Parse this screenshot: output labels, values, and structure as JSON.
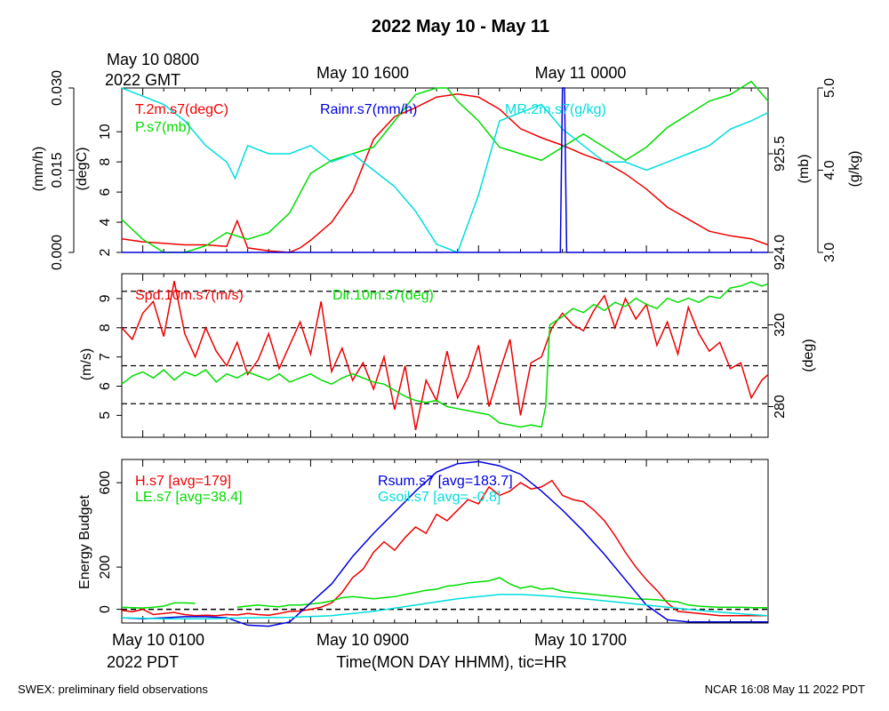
{
  "title": "2022 May 10 - May 11",
  "top_axis": {
    "corner_label_1": "May 10 0800",
    "corner_label_2": "2022 GMT",
    "tick_labels": [
      "May 10 1600",
      "May 11 0000"
    ]
  },
  "bottom_axis": {
    "tick_labels": [
      "May 10 0100",
      "May 10 0900",
      "May 10 1700"
    ],
    "corner_label": "2022 PDT",
    "xlabel": "Time(MON DAY HHMM), tic=HR"
  },
  "footer": {
    "left": "SWEX: preliminary field observations",
    "right": "NCAR 16:08 May 11 2022 PDT"
  },
  "colors": {
    "red": "#ee0000",
    "green": "#00dd00",
    "blue": "#0000dd",
    "cyan": "#00dddd",
    "black": "#000000"
  },
  "chart_data": [
    {
      "type": "line",
      "panel": "top",
      "x_unit": "hours since May 10 0000 PDT",
      "xlim": [
        0,
        30.8
      ],
      "axes": {
        "rain": {
          "ylabel": "(mm/h)",
          "ylim": [
            0,
            0.03
          ],
          "ticks": [
            "0.000",
            "0.015",
            "0.030"
          ]
        },
        "temp": {
          "ylabel": "(degC)",
          "ylim": [
            2,
            12.9
          ],
          "ticks": [
            "2",
            "4",
            "6",
            "8",
            "10"
          ]
        },
        "pressure": {
          "ylabel": "(mb)",
          "ylim": [
            924,
            926.5
          ],
          "ticks": [
            "924.0",
            "925.5"
          ]
        },
        "mr": {
          "ylabel": "(g/kg)",
          "ylim": [
            3,
            5
          ],
          "ticks": [
            "3.0",
            "4.0",
            "5.0"
          ]
        }
      },
      "series": [
        {
          "name": "T.2m.s7(degC)",
          "axis": "temp",
          "color": "red",
          "x": [
            0,
            1,
            2,
            3,
            4,
            5,
            5.5,
            6,
            7,
            8,
            8.5,
            9,
            10,
            11,
            12,
            13,
            14,
            15,
            16,
            17,
            18,
            19,
            20,
            21,
            22,
            23,
            24,
            25,
            26,
            27,
            28,
            29,
            30,
            30.8
          ],
          "y": [
            2.9,
            2.7,
            2.6,
            2.5,
            2.5,
            2.4,
            4.1,
            2.3,
            2.1,
            2.0,
            2.3,
            2.8,
            4.0,
            6.0,
            9.5,
            11.0,
            11.6,
            12.3,
            12.5,
            12.3,
            11.5,
            10.2,
            9.6,
            9.1,
            8.5,
            8.0,
            7.2,
            6.2,
            5.0,
            4.2,
            3.4,
            3.1,
            2.9,
            2.5
          ]
        },
        {
          "name": "P.s7(mb)",
          "axis": "pressure",
          "color": "green",
          "x": [
            0,
            1,
            2,
            3,
            4,
            5,
            6,
            7,
            8,
            9,
            10,
            11,
            12,
            13,
            14,
            15,
            15.5,
            16,
            17,
            18,
            19,
            20,
            21,
            22,
            23,
            24,
            25,
            26,
            27,
            28,
            29,
            30,
            30.8
          ],
          "y": [
            924.5,
            924.2,
            924.0,
            924.0,
            924.1,
            924.3,
            924.2,
            924.3,
            924.6,
            925.2,
            925.4,
            925.5,
            925.6,
            926.0,
            926.4,
            926.5,
            926.5,
            926.3,
            926.0,
            925.6,
            925.5,
            925.4,
            925.6,
            925.8,
            925.6,
            925.4,
            925.6,
            925.9,
            926.1,
            926.3,
            926.4,
            926.6,
            926.3
          ]
        },
        {
          "name": "MR.2m.s7(g/kg)",
          "axis": "mr",
          "color": "cyan",
          "x": [
            0,
            1,
            2,
            3,
            4,
            5,
            5.4,
            6,
            7,
            8,
            9,
            10,
            11,
            12,
            13,
            14,
            15,
            16,
            17,
            18,
            19,
            20,
            21,
            22,
            23,
            24,
            25,
            26,
            27,
            28,
            29,
            30,
            30.8
          ],
          "y": [
            5.0,
            4.9,
            4.8,
            4.6,
            4.3,
            4.1,
            3.9,
            4.3,
            4.2,
            4.2,
            4.3,
            4.1,
            4.2,
            4.0,
            3.8,
            3.5,
            3.1,
            3.0,
            3.7,
            4.6,
            4.7,
            4.8,
            4.5,
            4.3,
            4.1,
            4.1,
            4.0,
            4.1,
            4.2,
            4.3,
            4.5,
            4.6,
            4.7
          ]
        },
        {
          "name": "Rainr.s7(mm/h)",
          "axis": "rain",
          "color": "blue",
          "x": [
            0,
            20.9,
            21.0,
            21.05,
            21.1,
            21.2,
            30.8
          ],
          "y": [
            0,
            0,
            0.03,
            0.03,
            0.03,
            0,
            0
          ]
        }
      ]
    },
    {
      "type": "line",
      "panel": "middle",
      "xlim": [
        0,
        30.8
      ],
      "axes": {
        "speed": {
          "ylabel": "(m/s)",
          "ylim": [
            4.25,
            9.85
          ],
          "ticks": [
            "5",
            "6",
            "7",
            "8",
            "9"
          ]
        },
        "dir": {
          "ylabel": "(deg)",
          "ylim": [
            265,
            345
          ],
          "ticks": [
            "280",
            "320"
          ]
        }
      },
      "dashed_lines_speed": [
        5.4,
        6.7,
        8.0,
        9.25
      ],
      "series": [
        {
          "name": "Spd.10m.s7(m/s)",
          "axis": "speed",
          "color": "red",
          "x": [
            0,
            0.5,
            1,
            1.5,
            2,
            2.5,
            3,
            3.5,
            4,
            4.5,
            5,
            5.5,
            6,
            6.5,
            7,
            7.5,
            8,
            8.5,
            9,
            9.5,
            10,
            10.5,
            11,
            11.5,
            12,
            12.5,
            13,
            13.5,
            14,
            14.5,
            15,
            15.5,
            16,
            16.5,
            17,
            17.5,
            18,
            18.5,
            19,
            19.5,
            20,
            20.5,
            21,
            21.5,
            22,
            22.5,
            23,
            23.5,
            24,
            24.5,
            25,
            25.5,
            26,
            26.5,
            27,
            27.5,
            28,
            28.5,
            29,
            29.5,
            30,
            30.5,
            30.8
          ],
          "y": [
            8.0,
            7.6,
            8.5,
            8.9,
            7.7,
            9.6,
            7.8,
            7.0,
            8.0,
            7.2,
            6.7,
            7.5,
            6.4,
            6.9,
            7.8,
            6.6,
            7.4,
            8.2,
            7.1,
            8.9,
            6.5,
            7.3,
            6.2,
            6.8,
            5.9,
            7.0,
            5.2,
            6.7,
            4.5,
            6.2,
            5.5,
            7.2,
            5.6,
            6.3,
            7.4,
            5.3,
            6.5,
            7.6,
            5.0,
            6.8,
            7.0,
            8.0,
            8.5,
            8.1,
            7.9,
            8.6,
            9.1,
            8.0,
            9.0,
            8.3,
            8.8,
            7.4,
            8.2,
            7.1,
            8.7,
            7.8,
            7.2,
            7.5,
            6.6,
            6.8,
            5.6,
            6.2,
            6.4
          ]
        },
        {
          "name": "Dir.10m.s7(deg)",
          "axis": "dir",
          "color": "green",
          "x": [
            0,
            0.5,
            1,
            1.5,
            2,
            2.5,
            3,
            3.5,
            4,
            4.5,
            5,
            5.5,
            6,
            6.5,
            7,
            7.5,
            8,
            8.5,
            9,
            9.5,
            10,
            10.5,
            11,
            11.5,
            12,
            12.5,
            13,
            13.5,
            14,
            14.5,
            15,
            15.5,
            16,
            16.5,
            17,
            17.5,
            18,
            18.5,
            19,
            19.5,
            20,
            20.2,
            20.4,
            21,
            21.5,
            22,
            22.5,
            23,
            23.5,
            24,
            24.5,
            25,
            25.5,
            26,
            26.5,
            27,
            27.5,
            28,
            28.5,
            29,
            29.5,
            30,
            30.5,
            30.8
          ],
          "y": [
            291,
            295,
            297,
            294,
            298,
            293,
            297,
            295,
            298,
            292,
            296,
            294,
            297,
            295,
            293,
            296,
            292,
            294,
            296,
            293,
            291,
            294,
            296,
            294,
            292,
            291,
            288,
            285,
            283,
            282,
            283,
            280,
            279,
            278,
            277,
            276,
            272,
            271,
            270,
            271,
            270,
            280,
            320,
            324,
            328,
            326,
            330,
            327,
            331,
            329,
            333,
            330,
            328,
            333,
            331,
            333,
            331,
            334,
            333,
            338,
            339,
            341,
            339,
            340
          ]
        }
      ]
    },
    {
      "type": "line",
      "panel": "bottom",
      "xlim": [
        0,
        30.8
      ],
      "ylabel": "Energy Budget",
      "ylim": [
        -65,
        710
      ],
      "ticks": [
        "0",
        "200",
        "600"
      ],
      "dashed_lines": [
        0
      ],
      "series": [
        {
          "name": "H.s7 [avg=179]",
          "color": "red",
          "x": [
            0,
            0.5,
            1,
            1.5,
            2,
            2.5,
            3,
            3.5,
            4,
            4.5,
            5,
            5.5,
            6,
            6.5,
            7,
            7.5,
            8,
            8.5,
            9,
            9.5,
            10,
            10.5,
            11,
            11.5,
            12,
            12.5,
            13,
            13.5,
            14,
            14.5,
            15,
            15.5,
            16,
            16.5,
            17,
            17.5,
            18,
            18.5,
            19,
            19.5,
            20,
            20.5,
            21,
            21.5,
            22,
            22.5,
            23,
            23.5,
            24,
            24.5,
            25,
            25.5,
            26,
            26.5,
            27,
            27.5,
            28,
            28.5,
            29,
            29.5,
            30,
            30.5,
            30.8
          ],
          "y": [
            -5,
            -12,
            0,
            -25,
            -20,
            -15,
            -25,
            -30,
            -28,
            -30,
            -25,
            -27,
            -20,
            -25,
            -28,
            -20,
            -10,
            -8,
            0,
            10,
            30,
            80,
            150,
            190,
            270,
            320,
            280,
            340,
            390,
            360,
            450,
            420,
            470,
            520,
            500,
            580,
            540,
            560,
            600,
            570,
            580,
            610,
            540,
            520,
            510,
            470,
            420,
            350,
            270,
            200,
            140,
            90,
            30,
            -10,
            -15,
            -20,
            -25,
            -30,
            -30,
            -30,
            -30,
            -30,
            -30
          ]
        },
        {
          "name": "LE.s7 [avg=38.4]",
          "color": "green",
          "x": [
            0,
            0.5,
            1,
            1.5,
            2,
            2.5,
            3,
            3.5,
            4,
            4.5,
            5,
            5.5,
            6,
            6.5,
            7,
            7.5,
            8,
            8.5,
            9,
            9.5,
            10,
            10.5,
            11,
            11.5,
            12,
            12.5,
            13,
            13.5,
            14,
            14.5,
            15,
            15.5,
            16,
            16.5,
            17,
            17.5,
            18,
            18.5,
            19,
            19.5,
            20,
            20.5,
            21,
            21.5,
            22,
            22.5,
            23,
            23.5,
            24,
            24.5,
            25,
            25.5,
            26,
            26.5,
            27,
            27.5,
            28,
            28.5,
            29,
            29.5,
            30,
            30.5,
            30.8
          ],
          "y": [
            10,
            8,
            6,
            10,
            15,
            30,
            30,
            28,
            null,
            null,
            null,
            10,
            15,
            20,
            15,
            12,
            20,
            20,
            25,
            30,
            40,
            55,
            60,
            55,
            50,
            55,
            60,
            70,
            80,
            90,
            95,
            110,
            115,
            125,
            130,
            135,
            150,
            120,
            100,
            110,
            95,
            100,
            85,
            80,
            75,
            70,
            65,
            60,
            55,
            50,
            48,
            45,
            40,
            35,
            20,
            15,
            12,
            10,
            10,
            10,
            8,
            8,
            8
          ]
        },
        {
          "name": "Rsum.s7 [avg=183.7]",
          "color": "blue",
          "x": [
            0,
            1,
            2,
            3,
            4,
            5,
            6,
            7,
            8,
            9,
            10,
            11,
            12,
            13,
            14,
            15,
            16,
            17,
            18,
            19,
            20,
            21,
            22,
            23,
            24,
            25,
            26,
            27,
            28,
            29,
            30,
            30.8
          ],
          "y": [
            -40,
            -45,
            -40,
            -35,
            -35,
            -40,
            -75,
            -80,
            -60,
            30,
            120,
            250,
            360,
            460,
            560,
            650,
            690,
            700,
            680,
            640,
            560,
            470,
            370,
            260,
            140,
            20,
            -50,
            -60,
            -60,
            -60,
            -60,
            -60
          ]
        },
        {
          "name": "Gsoil.s7 [avg= -0.8]",
          "color": "cyan",
          "x": [
            0,
            2,
            4,
            6,
            8,
            10,
            12,
            14,
            16,
            18,
            19,
            20,
            22,
            24,
            26,
            28,
            30,
            30.8
          ],
          "y": [
            -40,
            -45,
            -45,
            -40,
            -38,
            -30,
            -10,
            20,
            50,
            70,
            70,
            65,
            50,
            30,
            10,
            -10,
            -25,
            -30
          ]
        }
      ]
    }
  ]
}
